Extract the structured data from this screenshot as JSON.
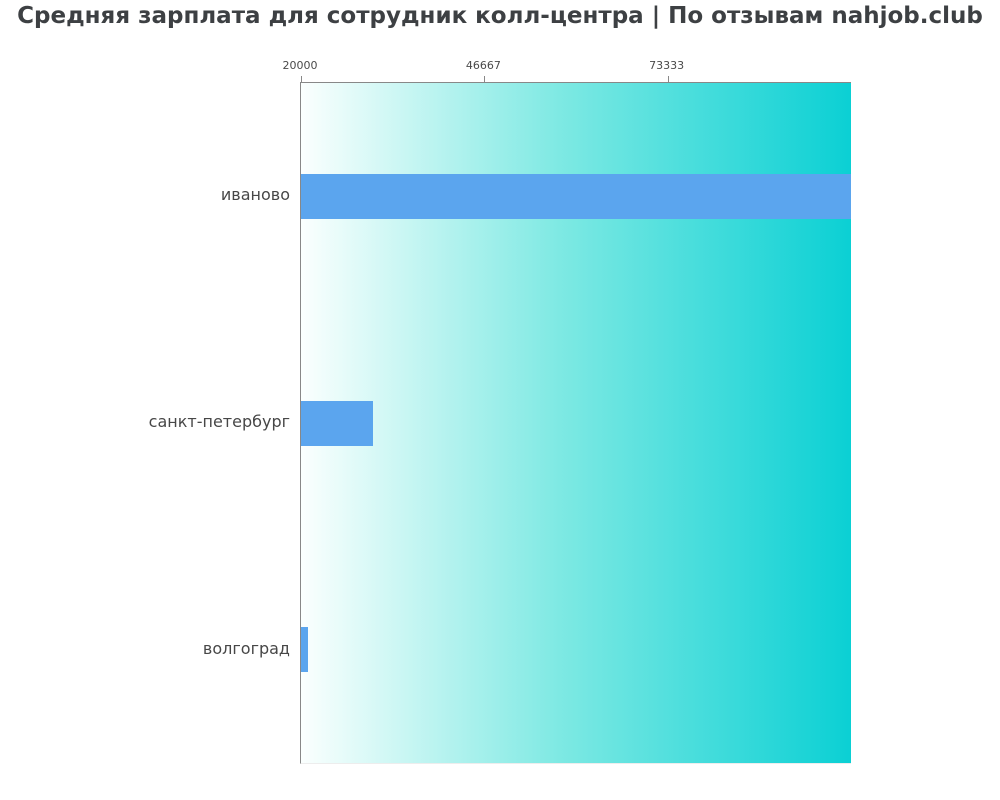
{
  "chart_data": {
    "type": "bar",
    "orientation": "horizontal",
    "title": "Средняя зарплата для сотрудник колл-центра | По отзывам nahjob.club",
    "categories": [
      "иваново",
      "санкт-петербург",
      "волгоград"
    ],
    "values": [
      100000,
      30400,
      21000
    ],
    "xlabel": "",
    "ylabel": "",
    "xlim": [
      20000,
      100000
    ],
    "xticks": [
      20000,
      46667,
      73333
    ],
    "xtick_labels": [
      "20000",
      "46667",
      "73333"
    ],
    "grid": false,
    "legend": "none",
    "colors": {
      "bar": "#5ba5ee",
      "plot_gradient_left": "#fbfffe",
      "plot_gradient_mid": "#7ee9e3",
      "plot_gradient_right": "#0bd0d4",
      "axis_line": "#888888",
      "title_text": "#3d4043",
      "category_label_text": "#474747",
      "tick_label_text": "#4a4a4a",
      "page_background": "#ffffff"
    }
  }
}
